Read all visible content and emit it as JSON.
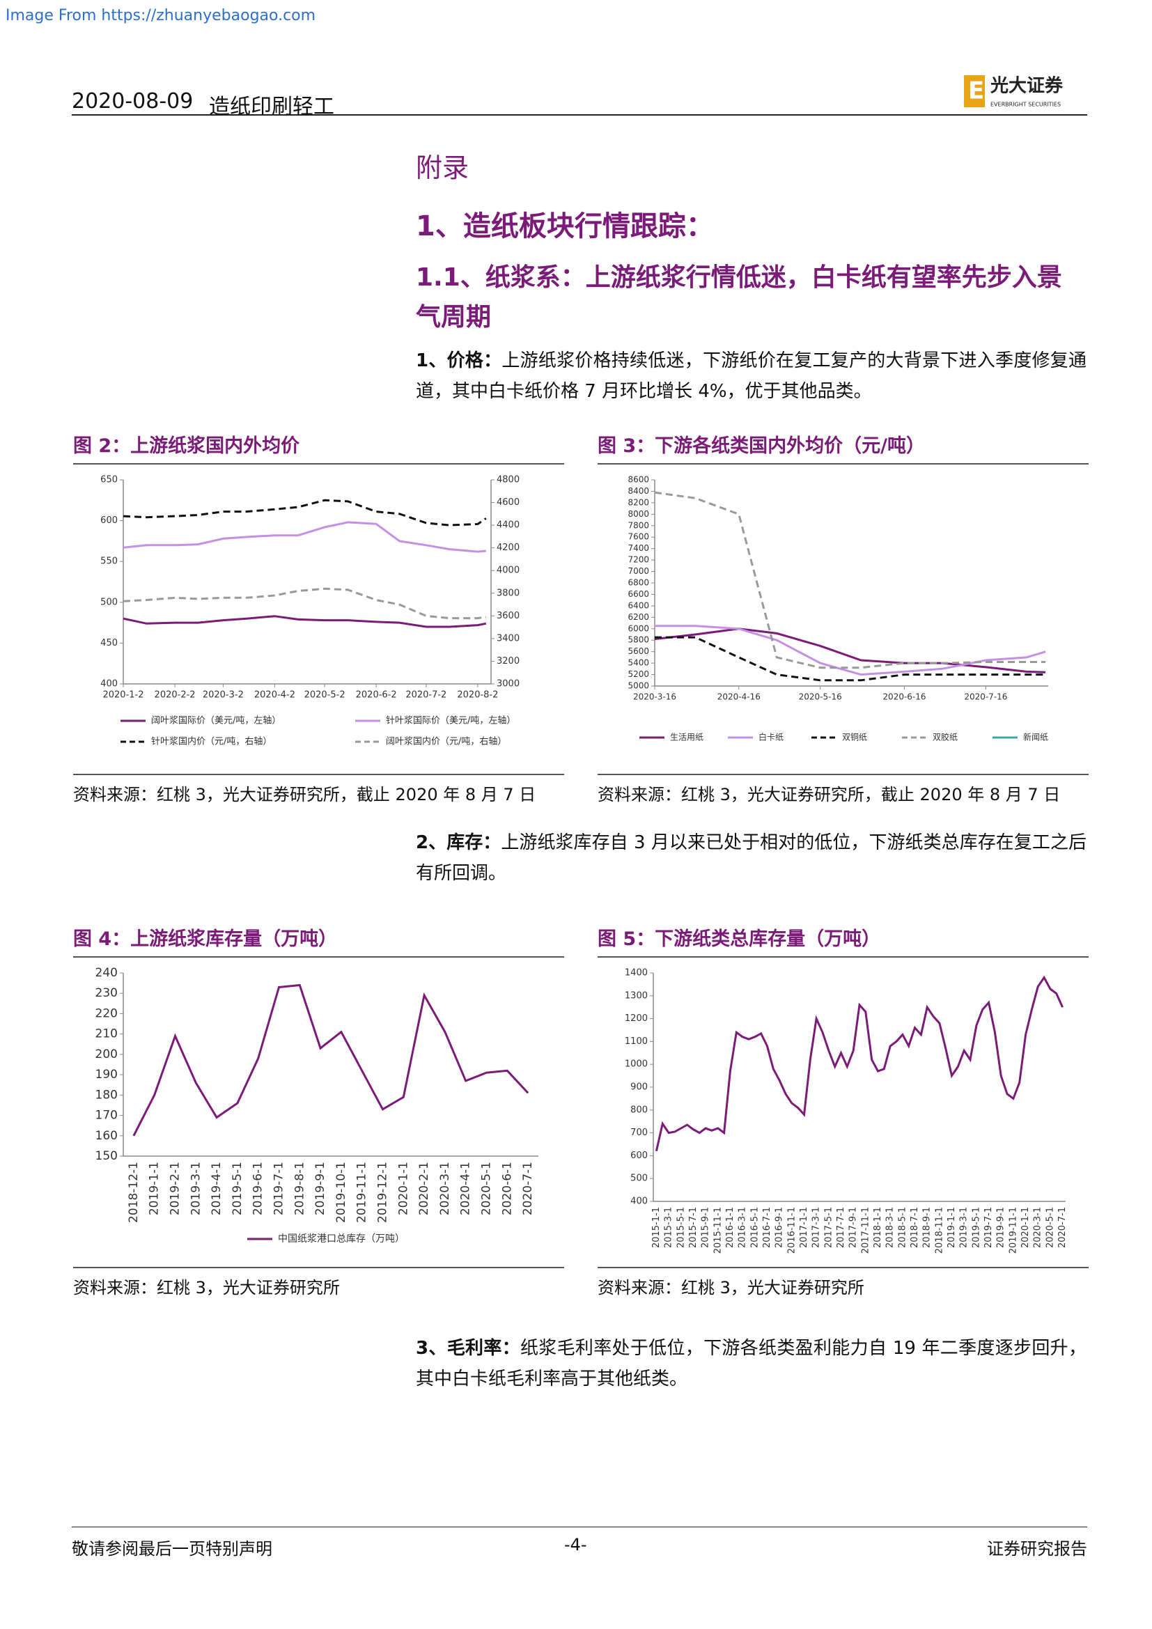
{
  "watermark": "Image From https://zhuanyebaogao.com",
  "header": {
    "date": "2020-08-09",
    "sector": "造纸印刷轻工",
    "logo_cn": "光大证券",
    "logo_en": "EVERBRIGHT SECURITIES"
  },
  "headings": [
    "附录",
    "1、造纸板块行情跟踪：",
    "1.1、纸浆系：上游纸浆行情低迷，白卡纸有望率先步入景气周期"
  ],
  "paragraphs": [
    {
      "lead": "1、价格：",
      "text": "上游纸浆价格持续低迷，下游纸价在复工复产的大背景下进入季度修复通道，其中白卡纸价格 7 月环比增长 4%，优于其他品类。"
    },
    {
      "lead": "2、库存：",
      "text": "上游纸浆库存自 3 月以来已处于相对的低位，下游纸类总库存在复工之后有所回调。"
    },
    {
      "lead": "3、毛利率：",
      "text": "纸浆毛利率处于低位，下游各纸类盈利能力自 19 年二季度逐步回升，其中白卡纸毛利率高于其他纸类。"
    }
  ],
  "footer": {
    "left": "敬请参阅最后一页特别声明",
    "page": "-4-",
    "right": "证券研究报告"
  },
  "chart_data": [
    {
      "type": "line",
      "title": "图 2：上游纸浆国内外均价",
      "source": "资料来源：红桃 3，光大证券研究所，截止 2020 年 8 月 7 日",
      "x": [
        "2020-1-2",
        "2020-1-16",
        "2020-2-2",
        "2020-2-16",
        "2020-3-2",
        "2020-3-16",
        "2020-4-2",
        "2020-4-16",
        "2020-5-2",
        "2020-5-16",
        "2020-6-2",
        "2020-6-16",
        "2020-7-2",
        "2020-7-16",
        "2020-8-2",
        "2020-8-7"
      ],
      "xlim": [
        "2020-1-2",
        "2020-8-10"
      ],
      "xticks": [
        "2020-1-2",
        "2020-2-2",
        "2020-3-2",
        "2020-4-2",
        "2020-5-2",
        "2020-6-2",
        "2020-7-2",
        "2020-8-2"
      ],
      "ylim": [
        400,
        650
      ],
      "yticks": [
        400,
        450,
        500,
        550,
        600,
        650
      ],
      "y2lim": [
        3000,
        4800
      ],
      "y2ticks": [
        3000,
        3200,
        3400,
        3600,
        3800,
        4000,
        4200,
        4400,
        4600,
        4800
      ],
      "legend": "bottom",
      "series": [
        {
          "name": "阔叶浆国际价（美元/吨，左轴）",
          "color": "#7b1a78",
          "values": [
            480,
            474,
            475,
            475,
            478,
            480,
            483,
            479,
            478,
            478,
            476,
            475,
            470,
            470,
            472,
            474
          ]
        },
        {
          "name": "针叶浆国际价（美元/吨，左轴）",
          "color": "#c490e4",
          "values": [
            567,
            570,
            570,
            571,
            578,
            580,
            582,
            582,
            592,
            598,
            596,
            575,
            570,
            565,
            562,
            563
          ]
        },
        {
          "name": "针叶浆国内价（元/吨，右轴）",
          "color": "#111111",
          "dash": "dashed",
          "axis": "y2",
          "values": [
            4480,
            4470,
            4480,
            4490,
            4520,
            4520,
            4540,
            4560,
            4620,
            4610,
            4520,
            4500,
            4420,
            4400,
            4410,
            4460
          ]
        },
        {
          "name": "阔叶浆国内价（元/吨，右轴）",
          "color": "#999999",
          "dash": "dashed",
          "axis": "y2",
          "values": [
            3730,
            3740,
            3760,
            3750,
            3760,
            3760,
            3780,
            3820,
            3840,
            3830,
            3740,
            3700,
            3600,
            3580,
            3580,
            3590
          ]
        }
      ]
    },
    {
      "type": "line",
      "title": "图 3：下游各纸类国内外均价（元/吨）",
      "source": "资料来源：红桃 3，光大证券研究所，截止 2020 年 8 月 7 日",
      "x": [
        "2020-3-16",
        "2020-3-31",
        "2020-4-16",
        "2020-4-30",
        "2020-5-16",
        "2020-5-31",
        "2020-6-16",
        "2020-6-30",
        "2020-7-16",
        "2020-7-31",
        "2020-8-7"
      ],
      "xlim": [
        "2020-3-16",
        "2020-8-8"
      ],
      "xticks": [
        "2020-3-16",
        "2020-4-16",
        "2020-5-16",
        "2020-6-16",
        "2020-7-16"
      ],
      "ylim": [
        5000,
        8600
      ],
      "yticks": [
        5000,
        5200,
        5400,
        5600,
        5800,
        6000,
        6200,
        6400,
        6600,
        6800,
        7000,
        7200,
        7400,
        7600,
        7800,
        8000,
        8200,
        8400,
        8600
      ],
      "legend": "bottom",
      "series": [
        {
          "name": "生活用纸",
          "color": "#7b1a78",
          "values": [
            5820,
            5900,
            6000,
            5920,
            5700,
            5450,
            5400,
            5400,
            5330,
            5250,
            5240
          ]
        },
        {
          "name": "白卡纸",
          "color": "#c490e4",
          "values": [
            6050,
            6050,
            6000,
            5800,
            5400,
            5200,
            5250,
            5300,
            5450,
            5500,
            5600
          ]
        },
        {
          "name": "双铜纸",
          "color": "#111111",
          "dash": "dashed",
          "values": [
            5850,
            5850,
            5500,
            5200,
            5100,
            5100,
            5200,
            5200,
            5200,
            5200,
            5200
          ]
        },
        {
          "name": "双胶纸",
          "color": "#999999",
          "dash": "dashed",
          "values": [
            8380,
            8280,
            8000,
            5500,
            5320,
            5320,
            5400,
            5400,
            5420,
            5420,
            5420
          ]
        },
        {
          "name": "新闻纸",
          "color": "#3aa8a8",
          "values": [
            null,
            null,
            null,
            null,
            null,
            null,
            null,
            null,
            null,
            null,
            null
          ]
        }
      ]
    },
    {
      "type": "line",
      "title": "图 4：上游纸浆库存量（万吨）",
      "source": "资料来源：红桃 3，光大证券研究所",
      "categories": [
        "2018-12-1",
        "2019-1-1",
        "2019-2-1",
        "2019-3-1",
        "2019-4-1",
        "2019-5-1",
        "2019-6-1",
        "2019-7-1",
        "2019-8-1",
        "2019-9-1",
        "2019-10-1",
        "2019-11-1",
        "2019-12-1",
        "2020-1-1",
        "2020-2-1",
        "2020-3-1",
        "2020-4-1",
        "2020-5-1",
        "2020-6-1",
        "2020-7-1"
      ],
      "ylim": [
        150,
        240
      ],
      "yticks": [
        150,
        160,
        170,
        180,
        190,
        200,
        210,
        220,
        230,
        240
      ],
      "legend": "bottom",
      "series": [
        {
          "name": "中国纸浆港口总库存（万吨）",
          "color": "#7b1a78",
          "values": [
            160,
            180,
            209,
            186,
            169,
            176,
            198,
            233,
            234,
            203,
            211,
            192,
            173,
            179,
            229,
            211,
            187,
            191,
            192,
            181
          ]
        }
      ]
    },
    {
      "type": "line",
      "title": "图 5：下游纸类总库存量（万吨）",
      "source": "资料来源：红桃 3，光大证券研究所",
      "categories": [
        "2015-1-1",
        null,
        "2015-3-1",
        null,
        "2015-5-1",
        null,
        "2015-7-1",
        null,
        "2015-9-1",
        null,
        "2015-11-1",
        null,
        "2016-1-1",
        null,
        "2016-3-1",
        null,
        "2016-5-1",
        null,
        "2016-7-1",
        null,
        "2016-9-1",
        null,
        "2016-11-1",
        null,
        "2017-1-1",
        null,
        "2017-3-1",
        null,
        "2017-5-1",
        null,
        "2017-7-1",
        null,
        "2017-9-1",
        null,
        "2017-11-1",
        null,
        "2018-1-1",
        null,
        "2018-3-1",
        null,
        "2018-5-1",
        null,
        "2018-7-1",
        null,
        "2018-9-1",
        null,
        "2018-11-1",
        null,
        "2019-1-1",
        null,
        "2019-3-1",
        null,
        "2019-5-1",
        null,
        "2019-7-1",
        null,
        "2019-9-1",
        null,
        "2019-11-1",
        null,
        "2020-1-1",
        null,
        "2020-3-1",
        null,
        "2020-5-1",
        null,
        "2020-7-1"
      ],
      "ylim": [
        400,
        1400
      ],
      "yticks": [
        400,
        500,
        600,
        700,
        800,
        900,
        1000,
        1100,
        1200,
        1300,
        1400
      ],
      "series": [
        {
          "color": "#7b1a78",
          "values": [
            620,
            740,
            700,
            705,
            720,
            735,
            715,
            700,
            720,
            710,
            720,
            700,
            970,
            1140,
            1120,
            1110,
            1120,
            1135,
            1080,
            980,
            930,
            870,
            830,
            810,
            780,
            1020,
            1200,
            1140,
            1060,
            990,
            1050,
            990,
            1060,
            1260,
            1230,
            1020,
            970,
            980,
            1080,
            1100,
            1130,
            1080,
            1160,
            1130,
            1250,
            1210,
            1180,
            1070,
            950,
            990,
            1060,
            1020,
            1170,
            1240,
            1270,
            1140,
            950,
            870,
            850,
            920,
            1130,
            1240,
            1340,
            1380,
            1330,
            1310,
            1250
          ]
        }
      ]
    }
  ]
}
